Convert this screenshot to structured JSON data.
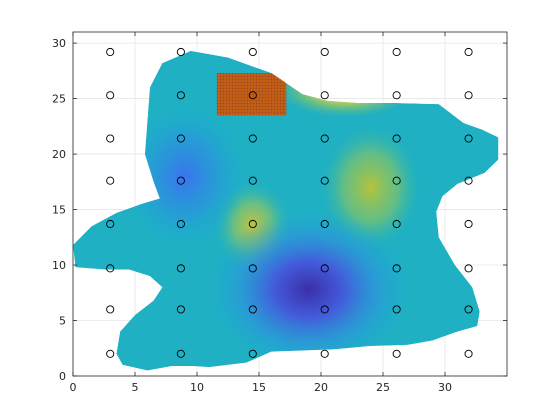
{
  "chart_data": {
    "type": "heatmap",
    "title": "",
    "xlabel": "",
    "ylabel": "",
    "xlim": [
      0,
      35
    ],
    "ylim": [
      0,
      31
    ],
    "xticks": [
      0,
      5,
      10,
      15,
      20,
      25,
      30
    ],
    "yticks": [
      0,
      5,
      10,
      15,
      20,
      25,
      30
    ],
    "grid": true,
    "colormap": "parula",
    "region_outline": [
      [
        0,
        11.8
      ],
      [
        1.5,
        13.5
      ],
      [
        3.5,
        14.7
      ],
      [
        5.5,
        15.5
      ],
      [
        7,
        16
      ],
      [
        6.5,
        17.5
      ],
      [
        5.8,
        20
      ],
      [
        6,
        23
      ],
      [
        6.2,
        26
      ],
      [
        7.2,
        28.2
      ],
      [
        9.5,
        29.3
      ],
      [
        12.5,
        28.7
      ],
      [
        16,
        27.3
      ],
      [
        18.5,
        25.4
      ],
      [
        20.5,
        24.8
      ],
      [
        23,
        24.6
      ],
      [
        26,
        24.6
      ],
      [
        29.5,
        24.5
      ],
      [
        31.5,
        22.8
      ],
      [
        33,
        22.2
      ],
      [
        34.3,
        21.5
      ],
      [
        34.3,
        19.5
      ],
      [
        33.2,
        18.3
      ],
      [
        31,
        17.3
      ],
      [
        29.8,
        16.2
      ],
      [
        29.3,
        14.8
      ],
      [
        29.5,
        12.5
      ],
      [
        30.8,
        10
      ],
      [
        32.2,
        8
      ],
      [
        32.8,
        5.8
      ],
      [
        32.6,
        4.5
      ],
      [
        31,
        4
      ],
      [
        29,
        3.2
      ],
      [
        27,
        2.8
      ],
      [
        24,
        2.7
      ],
      [
        21,
        2.4
      ],
      [
        18.5,
        2.3
      ],
      [
        16,
        2.2
      ],
      [
        14,
        1.2
      ],
      [
        11,
        0.8
      ],
      [
        9.5,
        0.9
      ],
      [
        8,
        0.9
      ],
      [
        6,
        0.5
      ],
      [
        4,
        1
      ],
      [
        3.5,
        2
      ],
      [
        3.8,
        4
      ],
      [
        5,
        5.5
      ],
      [
        6.5,
        6.8
      ],
      [
        7.2,
        8
      ],
      [
        6.2,
        9
      ],
      [
        4.5,
        9.6
      ],
      [
        2.5,
        9.6
      ],
      [
        0.2,
        9.8
      ]
    ],
    "field_features": [
      {
        "x": 24,
        "y": 17,
        "value": 0.62
      },
      {
        "x": 14.5,
        "y": 13.5,
        "value": 0.65
      },
      {
        "x": 19,
        "y": 7.8,
        "value": 0.05
      },
      {
        "x": 9,
        "y": 18,
        "value": 0.28
      },
      {
        "x": 22,
        "y": 26,
        "value": 0.9
      }
    ],
    "highlight_rect": {
      "x0": 11.6,
      "x1": 17.2,
      "y0": 23.5,
      "y1": 27.3,
      "color": "#d35400"
    },
    "markers": {
      "x": [
        3,
        8.7,
        14.5,
        20.3,
        26.1,
        31.9
      ],
      "y": [
        2,
        6,
        9.7,
        13.7,
        17.6,
        21.4,
        25.3,
        29.2
      ]
    }
  }
}
